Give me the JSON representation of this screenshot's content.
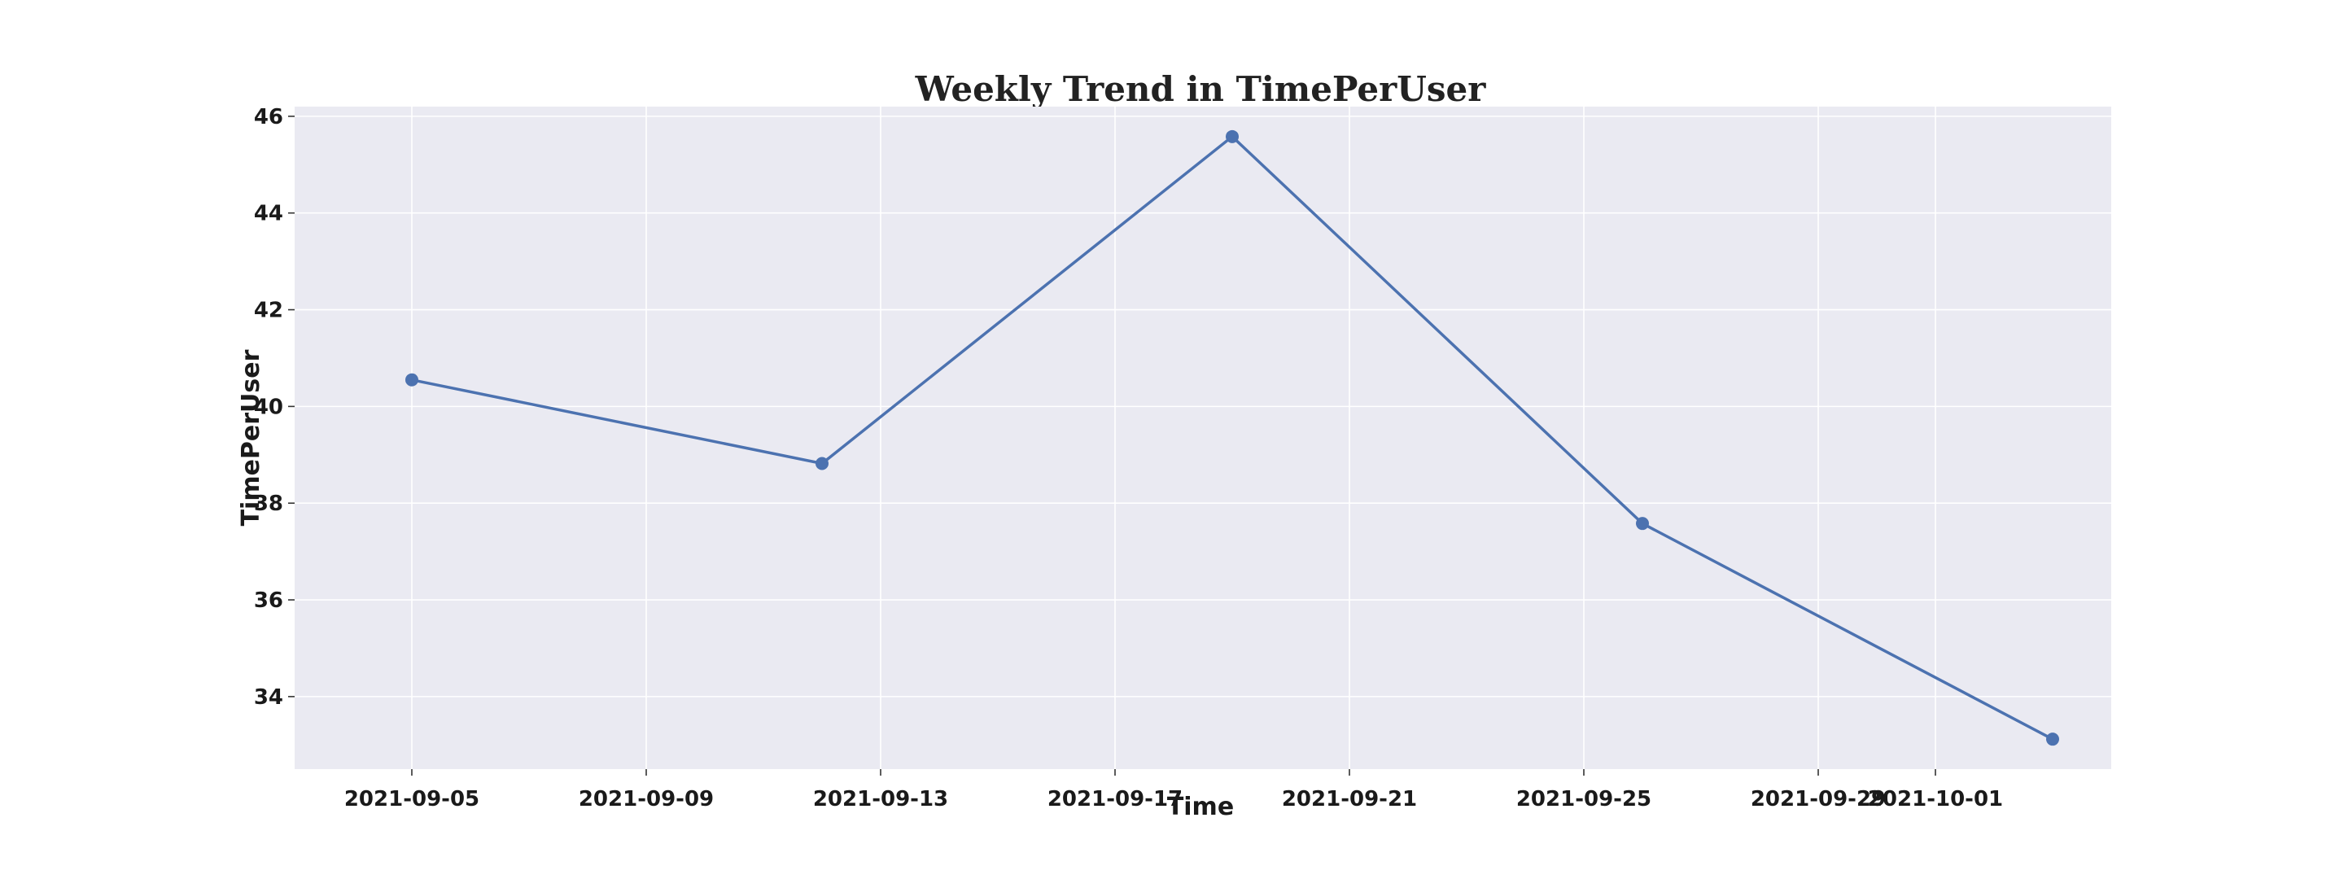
{
  "chart_data": {
    "type": "line",
    "title": "Weekly Trend in TimePerUser",
    "xlabel": "Time",
    "ylabel": "TimePerUser",
    "x_tick_labels": [
      "2021-09-05",
      "2021-09-09",
      "2021-09-13",
      "2021-09-17",
      "2021-09-21",
      "2021-09-25",
      "2021-09-29",
      "2021-10-01"
    ],
    "y_ticks": [
      34,
      36,
      38,
      40,
      42,
      44,
      46
    ],
    "xlim": [
      "2021-09-03",
      "2021-10-04"
    ],
    "ylim": [
      32.5,
      46.2
    ],
    "grid": true,
    "series": [
      {
        "x": [
          "2021-09-05",
          "2021-09-12",
          "2021-09-19",
          "2021-09-26",
          "2021-10-03"
        ],
        "values": [
          40.55,
          38.82,
          45.58,
          37.58,
          33.12
        ]
      }
    ],
    "colors": {
      "line": "#4c72b0",
      "plot_bg": "#eaeaf2",
      "grid": "#ffffff"
    }
  }
}
